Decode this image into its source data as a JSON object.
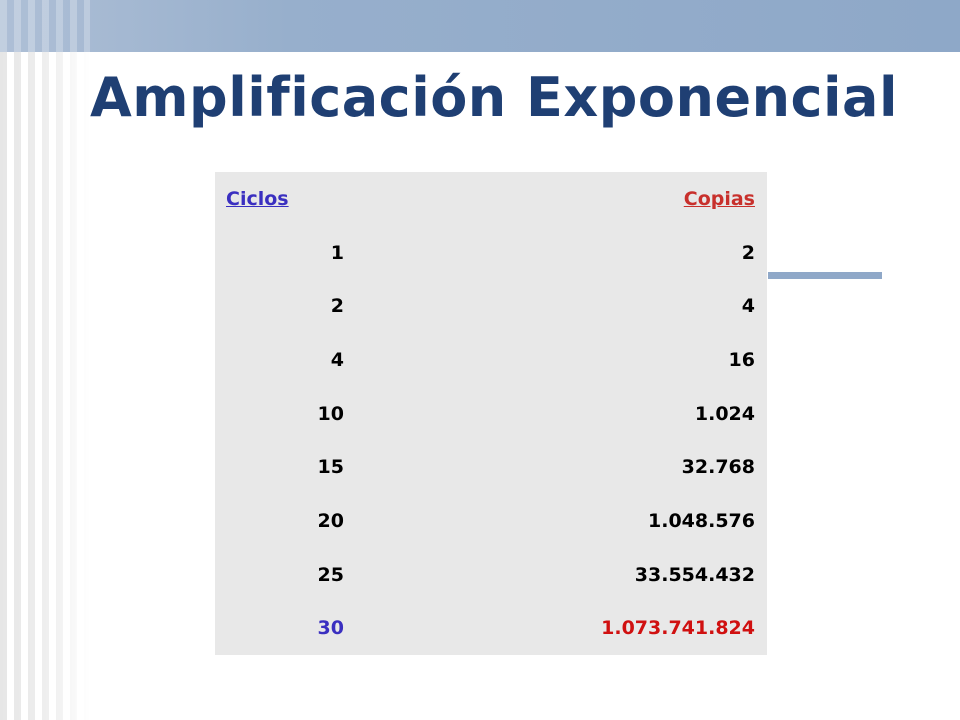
{
  "header": {
    "title": "Amplificación Exponencial"
  },
  "table": {
    "headers": [
      "Ciclos",
      "Copias"
    ],
    "rows": [
      [
        "1",
        "2"
      ],
      [
        "2",
        "4"
      ],
      [
        "4",
        "16"
      ],
      [
        "10",
        "1.024"
      ],
      [
        "15",
        "32.768"
      ],
      [
        "20",
        "1.048.576"
      ],
      [
        "25",
        "33.554.432"
      ],
      [
        "30",
        "1.073.741.824"
      ]
    ]
  }
}
